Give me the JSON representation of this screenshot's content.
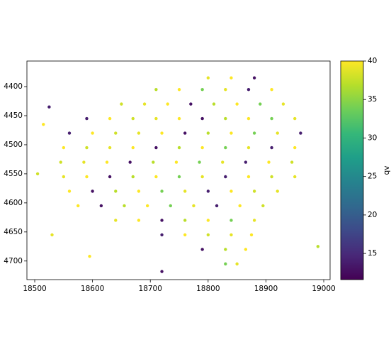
{
  "chart_data": {
    "type": "scatter",
    "colorbar_label": "qv",
    "colormap": "viridis",
    "clim": [
      11.6,
      40
    ],
    "cticks": [
      15,
      20,
      25,
      30,
      35,
      40
    ],
    "xlim": [
      18486.5,
      19011
    ],
    "xticks": [
      18500,
      18600,
      18700,
      18800,
      18900,
      19000
    ],
    "ylim": [
      4732,
      4356
    ],
    "yticks": [
      4400,
      4450,
      4500,
      4550,
      4600,
      4650,
      4700
    ],
    "x": [
      18800,
      18840,
      18880,
      18710,
      18750,
      18790,
      18830,
      18870,
      18910,
      18650,
      18690,
      18730,
      18770,
      18810,
      18850,
      18890,
      18930,
      18590,
      18630,
      18670,
      18710,
      18750,
      18790,
      18830,
      18870,
      18910,
      18950,
      18560,
      18600,
      18640,
      18680,
      18720,
      18760,
      18800,
      18840,
      18880,
      18920,
      18960,
      18550,
      18590,
      18630,
      18670,
      18710,
      18750,
      18790,
      18830,
      18870,
      18910,
      18950,
      18545,
      18585,
      18625,
      18665,
      18705,
      18745,
      18785,
      18825,
      18865,
      18905,
      18945,
      18550,
      18590,
      18630,
      18670,
      18710,
      18750,
      18790,
      18830,
      18870,
      18910,
      18950,
      18560,
      18600,
      18640,
      18680,
      18720,
      18760,
      18800,
      18840,
      18880,
      18920,
      18575,
      18615,
      18655,
      18695,
      18735,
      18775,
      18815,
      18855,
      18895,
      18640,
      18680,
      18720,
      18760,
      18800,
      18840,
      18880,
      18720,
      18760,
      18800,
      18840,
      18875,
      18790,
      18830,
      18865,
      18830,
      18850,
      18525,
      18515,
      18505,
      18530,
      18595,
      18720,
      18990
    ],
    "y": [
      4385,
      4385,
      4385,
      4405,
      4405,
      4405,
      4405,
      4405,
      4405,
      4430,
      4430,
      4430,
      4430,
      4430,
      4430,
      4430,
      4430,
      4455,
      4455,
      4455,
      4455,
      4455,
      4455,
      4455,
      4455,
      4455,
      4455,
      4480,
      4480,
      4480,
      4480,
      4480,
      4480,
      4480,
      4480,
      4480,
      4480,
      4480,
      4505,
      4505,
      4505,
      4505,
      4505,
      4505,
      4505,
      4505,
      4505,
      4505,
      4505,
      4530,
      4530,
      4530,
      4530,
      4530,
      4530,
      4530,
      4530,
      4530,
      4530,
      4530,
      4555,
      4555,
      4555,
      4555,
      4555,
      4555,
      4555,
      4555,
      4555,
      4555,
      4555,
      4580,
      4580,
      4580,
      4580,
      4580,
      4580,
      4580,
      4580,
      4580,
      4580,
      4605,
      4605,
      4605,
      4605,
      4605,
      4605,
      4605,
      4605,
      4605,
      4630,
      4630,
      4630,
      4630,
      4630,
      4630,
      4630,
      4655,
      4655,
      4655,
      4655,
      4655,
      4680,
      4680,
      4680,
      4705,
      4705,
      4435,
      4465,
      4550,
      4655,
      4692,
      4718,
      4675
    ],
    "c": [
      39,
      40,
      13,
      37,
      40,
      34,
      39,
      14,
      40,
      38,
      39,
      40,
      13,
      37,
      40,
      34,
      39,
      14,
      40,
      38,
      39,
      40,
      13,
      37,
      40,
      34,
      39,
      14,
      40,
      38,
      39,
      40,
      13,
      37,
      40,
      34,
      39,
      14,
      40,
      38,
      39,
      40,
      13,
      37,
      40,
      34,
      39,
      14,
      40,
      38,
      39,
      40,
      13,
      37,
      40,
      34,
      39,
      14,
      40,
      38,
      39,
      40,
      13,
      37,
      40,
      34,
      39,
      14,
      40,
      38,
      39,
      40,
      13,
      37,
      40,
      34,
      39,
      14,
      40,
      38,
      39,
      40,
      13,
      37,
      40,
      34,
      39,
      14,
      40,
      38,
      39,
      40,
      13,
      37,
      40,
      34,
      39,
      14,
      40,
      38,
      39,
      40,
      13,
      37,
      40,
      34,
      39,
      14,
      40,
      38,
      39,
      40,
      13,
      37
    ]
  }
}
